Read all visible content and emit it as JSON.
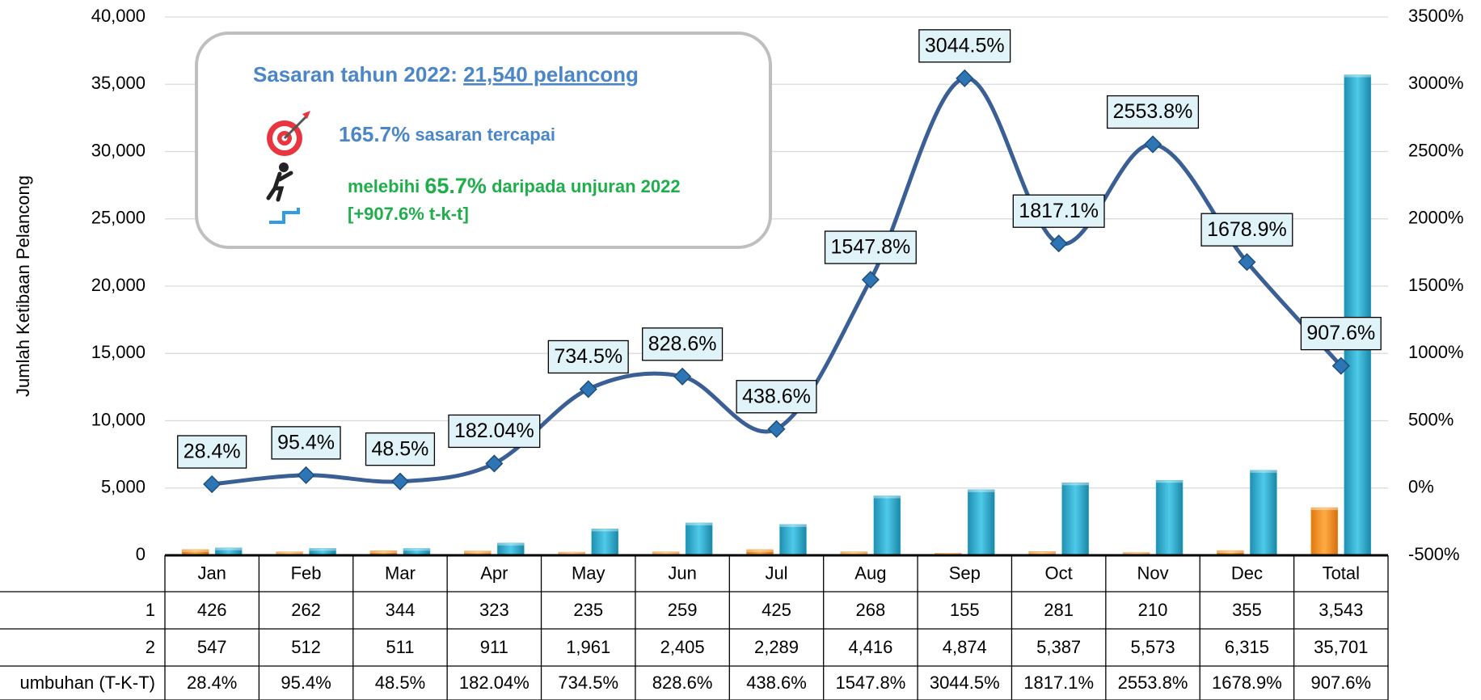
{
  "chart_data": {
    "type": "bar_line_table",
    "y_label": "Jumlah Ketibaan Pelancong",
    "categories": [
      "Jan",
      "Feb",
      "Mar",
      "Apr",
      "May",
      "Jun",
      "Jul",
      "Aug",
      "Sep",
      "Oct",
      "Nov",
      "Dec",
      "Total"
    ],
    "series": [
      {
        "name": "1",
        "type": "bar",
        "color": "#f7931e",
        "values": [
          426,
          262,
          344,
          323,
          235,
          259,
          425,
          268,
          155,
          281,
          210,
          355,
          3543
        ],
        "value_labels": [
          "426",
          "262",
          "344",
          "323",
          "235",
          "259",
          "425",
          "268",
          "155",
          "281",
          "210",
          "355",
          "3,543"
        ]
      },
      {
        "name": "2",
        "type": "bar",
        "color": "#2fb5d8",
        "values": [
          547,
          512,
          511,
          911,
          1961,
          2405,
          2289,
          4416,
          4874,
          5387,
          5573,
          6315,
          35701
        ],
        "value_labels": [
          "547",
          "512",
          "511",
          "911",
          "1,961",
          "2,405",
          "2,289",
          "4,416",
          "4,874",
          "5,387",
          "5,573",
          "6,315",
          "35,701"
        ]
      },
      {
        "name": "umbuhan (T-K-T)",
        "type": "line",
        "axis": "y2",
        "color": "#3a5f95",
        "values": [
          28.4,
          95.4,
          48.5,
          182.04,
          734.5,
          828.6,
          438.6,
          1547.8,
          3044.5,
          1817.1,
          2553.8,
          1678.9,
          907.6
        ],
        "value_labels": [
          "28.4%",
          "95.4%",
          "48.5%",
          "182.04%",
          "734.5%",
          "828.6%",
          "438.6%",
          "1547.8%",
          "3044.5%",
          "1817.1%",
          "2553.8%",
          "1678.9%",
          "907.6%"
        ]
      }
    ],
    "ylim": [
      0,
      40000
    ],
    "yticks": [
      0,
      {
        "value": 5000,
        "label": "5,000"
      },
      {
        "value": 10000,
        "label": "10,000"
      },
      {
        "value": 15000,
        "label": "15,000"
      },
      {
        "value": 20000,
        "label": "20,000"
      },
      {
        "value": 25000,
        "label": "25,000"
      },
      {
        "value": 30000,
        "label": "30,000"
      },
      {
        "value": 35000,
        "label": "35,000"
      },
      {
        "value": 40000,
        "label": "40,000"
      }
    ],
    "y2lim": [
      -500,
      3500
    ],
    "y2ticks": [
      {
        "value": -500,
        "label": "-500%"
      },
      {
        "value": 0,
        "label": "0%"
      },
      {
        "value": 500,
        "label": "500%"
      },
      {
        "value": 1000,
        "label": "1000%"
      },
      {
        "value": 1500,
        "label": "1500%"
      },
      {
        "value": 2000,
        "label": "2000%"
      },
      {
        "value": 2500,
        "label": "2500%"
      },
      {
        "value": 3000,
        "label": "3000%"
      },
      {
        "value": 3500,
        "label": "3500%"
      }
    ],
    "grid": true,
    "annotations": {
      "target_prefix": "Sasaran tahun 2022:",
      "target_value": "21,540 pelancong",
      "achieved_value": "165.7%",
      "achieved_text": "sasaran tercapai",
      "exceed_prefix": "melebihi",
      "exceed_value": "65.7%",
      "exceed_text": "daripada unjuran 2022",
      "growth_note": "[+907.6% t-k-t]"
    }
  }
}
